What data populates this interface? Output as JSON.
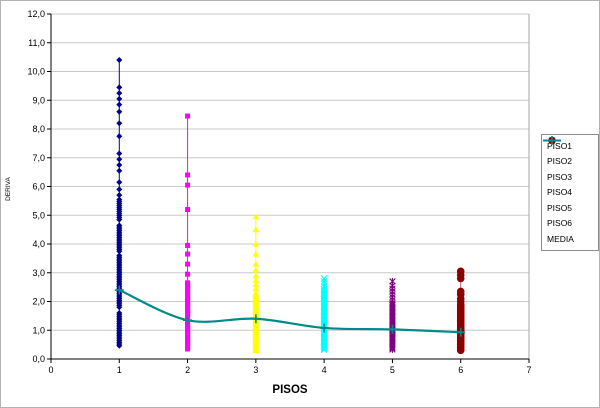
{
  "chart_data": {
    "type": "scatter",
    "title": "",
    "xlabel": "PISOS",
    "ylabel": "DERIVA",
    "xlim": [
      0,
      7
    ],
    "ylim": [
      0,
      12
    ],
    "x_tick_labels": [
      "0",
      "1",
      "2",
      "3",
      "4",
      "5",
      "6",
      "7"
    ],
    "y_tick_labels": [
      "0,0",
      "1,0",
      "2,0",
      "3,0",
      "4,0",
      "5,0",
      "6,0",
      "7,0",
      "8,0",
      "9,0",
      "10,0",
      "11,0",
      "12,0"
    ],
    "grid": "horizontal",
    "legend_position": "right",
    "series": [
      {
        "name": "PISO1",
        "x": 1,
        "marker": "diamond",
        "color": "#000090",
        "line_color": "#000090",
        "outliers": [
          10.4,
          9.45,
          9.25,
          9.05,
          8.85,
          8.6,
          8.2,
          7.75,
          7.15,
          6.95,
          6.75,
          6.55,
          6.15,
          5.9,
          5.7
        ],
        "bands": [
          {
            "from": 5.55,
            "to": 4.8,
            "step": 0.07
          },
          {
            "from": 4.65,
            "to": 3.75,
            "step": 0.06
          },
          {
            "from": 3.6,
            "to": 1.75,
            "step": 0.06
          },
          {
            "from": 1.6,
            "to": 0.45,
            "step": 0.06
          }
        ]
      },
      {
        "name": "PISO2",
        "x": 2,
        "marker": "square",
        "color": "#FF00FF",
        "line_color": "#FF00FF",
        "outliers": [
          8.45,
          6.4,
          6.05,
          5.2,
          3.95,
          3.65,
          3.3,
          2.95
        ],
        "bands": [
          {
            "from": 2.65,
            "to": 0.35,
            "step": 0.05
          }
        ]
      },
      {
        "name": "PISO3",
        "x": 3,
        "marker": "triangle",
        "color": "#FFFF00",
        "line_color": "#FFFF00",
        "outliers": [
          4.95,
          4.5,
          4.0,
          3.65,
          3.3,
          3.1,
          2.9,
          2.75,
          2.6,
          2.45
        ],
        "bands": [
          {
            "from": 2.3,
            "to": 0.3,
            "step": 0.05
          }
        ]
      },
      {
        "name": "PISO4",
        "x": 4,
        "marker": "x",
        "color": "#00FFFF",
        "line_color": "#00FFFF",
        "outliers": [
          2.8,
          2.7,
          2.62,
          2.52,
          2.42
        ],
        "bands": [
          {
            "from": 2.35,
            "to": 0.3,
            "step": 0.045
          }
        ]
      },
      {
        "name": "PISO5",
        "x": 5,
        "marker": "asterisk",
        "color": "#800080",
        "line_color": "#C080C0",
        "outliers": [
          2.7,
          2.55,
          2.45,
          2.35,
          2.25,
          2.15,
          2.05
        ],
        "bands": [
          {
            "from": 1.95,
            "to": 0.3,
            "step": 0.045
          }
        ]
      },
      {
        "name": "PISO6",
        "x": 6,
        "marker": "circle",
        "color": "#8B0000",
        "line_color": "#B07070",
        "outliers": [
          3.05,
          2.92,
          2.8,
          2.35,
          2.25,
          2.1,
          2.0
        ],
        "bands": [
          {
            "from": 1.9,
            "to": 0.3,
            "step": 0.05
          }
        ]
      }
    ],
    "media": {
      "name": "MEDIA",
      "color": "#008B8B",
      "marker": "plus",
      "x": [
        1,
        2,
        3,
        4,
        5,
        6
      ],
      "values": [
        2.4,
        1.35,
        1.4,
        1.08,
        1.03,
        0.93
      ],
      "smoothed": true
    }
  },
  "colors": {
    "background": "#ffffff",
    "gridline": "#c9c9c9",
    "axis": "#000000",
    "plot_border": "#a6a6a6",
    "frame_border": "#b3b3b3",
    "legend_border": "#8c8c8c"
  }
}
